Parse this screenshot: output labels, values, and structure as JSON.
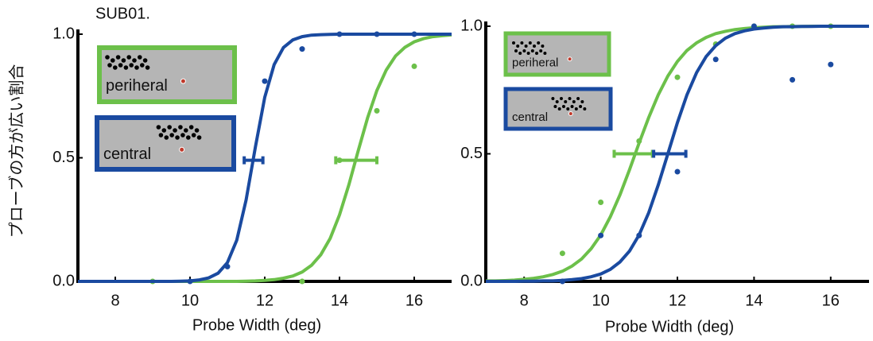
{
  "chart_data": [
    {
      "type": "line",
      "title": "SUB01.",
      "ylabel": "プローブの方が広い割合",
      "xlabel": "Probe Width (deg)",
      "xlim": [
        7,
        17
      ],
      "ylim": [
        0,
        1
      ],
      "xticks": [
        8,
        10,
        12,
        14,
        16
      ],
      "yticks": [
        {
          "value": 0,
          "label": "0.0"
        },
        {
          "value": 0.5,
          "label": "0.5"
        },
        {
          "value": 1,
          "label": "1.0"
        }
      ],
      "fit_x": [
        7,
        7.25,
        7.5,
        7.75,
        8,
        8.25,
        8.5,
        8.75,
        9,
        9.25,
        9.5,
        9.75,
        10,
        10.25,
        10.5,
        10.75,
        11,
        11.25,
        11.5,
        11.75,
        12,
        12.25,
        12.5,
        12.75,
        13,
        13.25,
        13.5,
        13.75,
        14,
        14.25,
        14.5,
        14.75,
        15,
        15.25,
        15.5,
        15.75,
        16,
        16.25,
        16.5,
        16.75,
        17
      ],
      "series": [
        {
          "name": "periheral",
          "color": "#6cc04a",
          "x": [
            9,
            13,
            14,
            15,
            16
          ],
          "values": [
            0,
            0,
            0.49,
            0.69,
            0.87
          ],
          "fit": [
            0,
            0,
            0,
            0,
            0,
            0,
            0,
            0,
            0,
            0,
            0,
            0,
            0,
            0,
            0,
            0,
            0,
            0,
            0.001,
            0.002,
            0.004,
            0.007,
            0.013,
            0.022,
            0.038,
            0.065,
            0.108,
            0.174,
            0.269,
            0.391,
            0.528,
            0.661,
            0.772,
            0.855,
            0.912,
            0.947,
            0.969,
            0.982,
            0.99,
            0.994,
            0.997
          ],
          "threshold": {
            "y": 0.49,
            "x": 14.45,
            "err": 0.55
          }
        },
        {
          "name": "central",
          "color": "#1a4aa0",
          "x": [
            10,
            11,
            12,
            13,
            14,
            15,
            16
          ],
          "values": [
            0,
            0.06,
            0.81,
            0.94,
            1,
            1,
            1
          ],
          "fit": [
            0,
            0,
            0,
            0,
            0,
            0,
            0,
            0,
            0,
            0,
            0,
            0.001,
            0.002,
            0.006,
            0.014,
            0.033,
            0.076,
            0.167,
            0.329,
            0.545,
            0.745,
            0.877,
            0.946,
            0.977,
            0.99,
            0.996,
            0.998,
            0.999,
            1,
            1,
            1,
            1,
            1,
            1,
            1,
            1,
            1,
            1,
            1,
            1,
            1
          ],
          "threshold": {
            "y": 0.49,
            "x": 11.7,
            "err": 0.25
          }
        }
      ]
    },
    {
      "type": "line",
      "xlabel": "Probe Width (deg)",
      "xlim": [
        7,
        17
      ],
      "ylim": [
        0,
        1
      ],
      "xticks": [
        8,
        10,
        12,
        14,
        16
      ],
      "yticks": [
        {
          "value": 0,
          "label": "0.0"
        },
        {
          "value": 0.5,
          "label": "0.5"
        },
        {
          "value": 1,
          "label": "1.0"
        }
      ],
      "fit_x": [
        7,
        7.25,
        7.5,
        7.75,
        8,
        8.25,
        8.5,
        8.75,
        9,
        9.25,
        9.5,
        9.75,
        10,
        10.25,
        10.5,
        10.75,
        11,
        11.25,
        11.5,
        11.75,
        12,
        12.25,
        12.5,
        12.75,
        13,
        13.25,
        13.5,
        13.75,
        14,
        14.25,
        14.5,
        14.75,
        15,
        15.25,
        15.5,
        15.75,
        16,
        16.25,
        16.5,
        16.75,
        17
      ],
      "series": [
        {
          "name": "periheral",
          "color": "#6cc04a",
          "x": [
            9,
            10,
            11,
            12,
            13,
            14,
            15,
            16
          ],
          "values": [
            0.11,
            0.31,
            0.55,
            0.8,
            0.93,
            1,
            1,
            1
          ],
          "fit": [
            0.002,
            0.002,
            0.003,
            0.005,
            0.008,
            0.012,
            0.018,
            0.027,
            0.04,
            0.06,
            0.088,
            0.128,
            0.182,
            0.253,
            0.339,
            0.438,
            0.542,
            0.642,
            0.731,
            0.805,
            0.862,
            0.905,
            0.935,
            0.956,
            0.971,
            0.98,
            0.987,
            0.991,
            0.994,
            0.996,
            0.998,
            0.998,
            0.999,
            0.999,
            1,
            1,
            1,
            1,
            1,
            1,
            1
          ],
          "threshold": {
            "y": 0.5,
            "x": 10.85,
            "err": 0.5
          }
        },
        {
          "name": "central",
          "color": "#1a4aa0",
          "x": [
            9,
            10,
            11,
            12,
            13,
            14,
            15,
            16
          ],
          "values": [
            0,
            0.18,
            0.18,
            0.43,
            0.87,
            1,
            0.79,
            0.85
          ],
          "fit": [
            0,
            0,
            0,
            0,
            0.001,
            0.001,
            0.002,
            0.002,
            0.004,
            0.007,
            0.011,
            0.018,
            0.029,
            0.047,
            0.076,
            0.119,
            0.182,
            0.269,
            0.378,
            0.5,
            0.622,
            0.731,
            0.818,
            0.881,
            0.924,
            0.953,
            0.971,
            0.982,
            0.989,
            0.993,
            0.996,
            0.998,
            0.998,
            0.999,
            0.999,
            1,
            1,
            1,
            1,
            1,
            1
          ],
          "threshold": {
            "y": 0.5,
            "x": 11.8,
            "err": 0.42
          }
        }
      ]
    }
  ]
}
